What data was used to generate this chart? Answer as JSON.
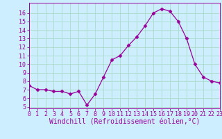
{
  "x": [
    0,
    1,
    2,
    3,
    4,
    5,
    6,
    7,
    8,
    9,
    10,
    11,
    12,
    13,
    14,
    15,
    16,
    17,
    18,
    19,
    20,
    21,
    22,
    23
  ],
  "y": [
    7.5,
    7.0,
    7.0,
    6.8,
    6.8,
    6.5,
    6.8,
    5.2,
    6.5,
    8.5,
    10.5,
    11.0,
    12.2,
    13.2,
    14.5,
    16.0,
    16.5,
    16.2,
    15.0,
    13.0,
    10.0,
    8.5,
    8.0,
    7.8
  ],
  "line_color": "#990099",
  "marker": "D",
  "marker_size": 2.5,
  "bg_color": "#cceeff",
  "grid_color": "#aaddcc",
  "xlabel": "Windchill (Refroidissement éolien,°C)",
  "xlim": [
    0,
    23
  ],
  "ylim": [
    4.8,
    17.2
  ],
  "yticks": [
    5,
    6,
    7,
    8,
    9,
    10,
    11,
    12,
    13,
    14,
    15,
    16
  ],
  "xticks": [
    0,
    1,
    2,
    3,
    4,
    5,
    6,
    7,
    8,
    9,
    10,
    11,
    12,
    13,
    14,
    15,
    16,
    17,
    18,
    19,
    20,
    21,
    22,
    23
  ],
  "tick_color": "#990099",
  "label_color": "#990099",
  "spine_color": "#990099",
  "xlabel_fontsize": 7.0,
  "tick_fontsize": 6.0
}
